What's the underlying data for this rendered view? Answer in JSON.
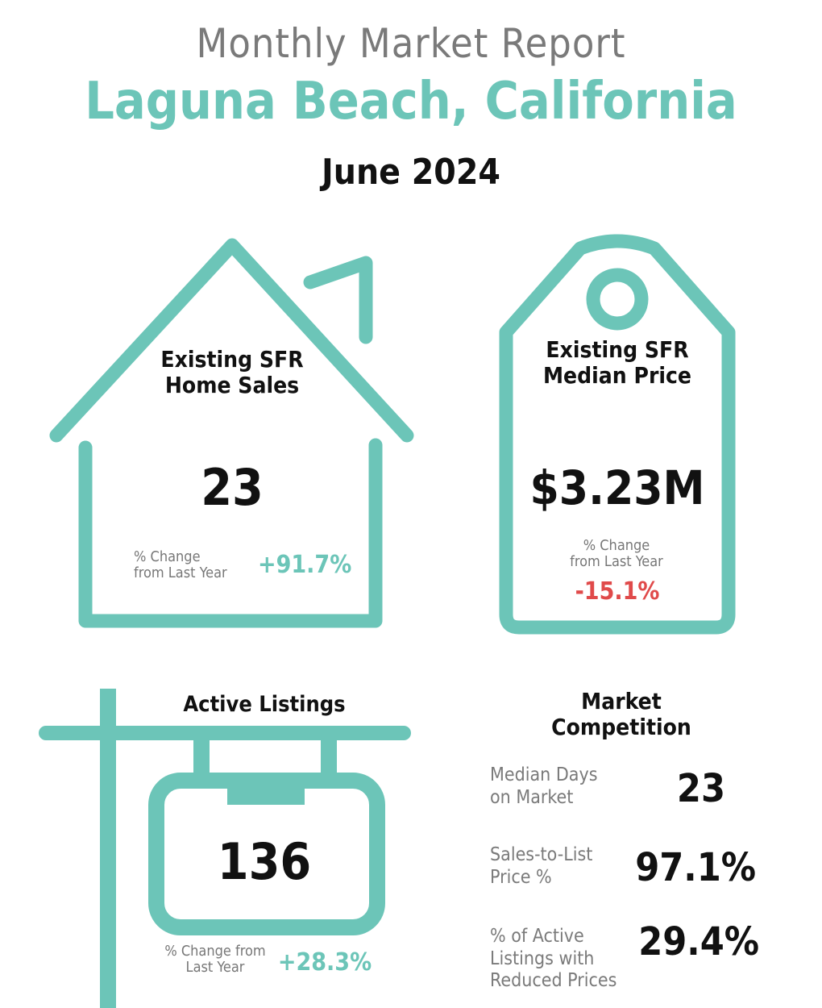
{
  "header": {
    "report_title": "Monthly Market Report",
    "city": "Laguna Beach, California",
    "period": "June 2024"
  },
  "home_sales": {
    "title_line1": "Existing SFR",
    "title_line2": "Home Sales",
    "value": "23",
    "change_label_line1": "% Change",
    "change_label_line2": "from Last Year",
    "change_value": "+91.7%"
  },
  "median_price": {
    "title_line1": "Existing SFR",
    "title_line2": "Median Price",
    "value": "$3.23M",
    "change_label_line1": "% Change",
    "change_label_line2": "from Last Year",
    "change_value": "-15.1%"
  },
  "active_listings": {
    "title": "Active Listings",
    "value": "136",
    "change_label_line1": "% Change from",
    "change_label_line2": "Last Year",
    "change_value": "+28.3%"
  },
  "market_competition": {
    "title_line1": "Market",
    "title_line2": "Competition",
    "metrics": [
      {
        "label_lines": [
          "Median Days",
          "on Market"
        ],
        "value": "23"
      },
      {
        "label_lines": [
          "Sales-to-List",
          "Price %"
        ],
        "value": "97.1%"
      },
      {
        "label_lines": [
          "% of Active",
          "Listings with",
          "Reduced Prices"
        ],
        "value": "29.4%"
      }
    ]
  },
  "colors": {
    "accent_teal": "#6cc5b8",
    "negative_red": "#e04a4a",
    "label_gray": "#7a7a7a"
  },
  "icons": [
    "house-icon",
    "price-tag-icon",
    "sign-post-icon"
  ]
}
